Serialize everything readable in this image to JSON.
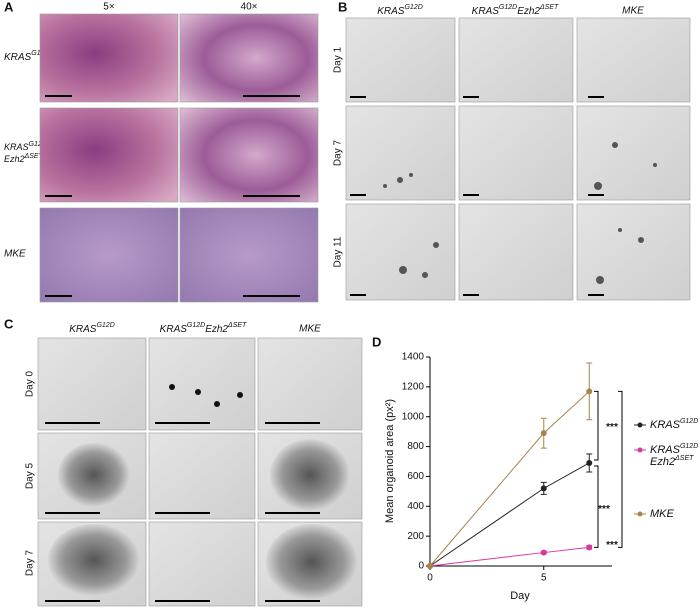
{
  "panel_a": {
    "label": "A",
    "columns": [
      "5×",
      "40×"
    ],
    "rows": [
      {
        "gene": "KRAS",
        "sup": "G12D"
      },
      {
        "gene": "KRAS",
        "sup": "G12D",
        "gene2": "Ezh2",
        "sup2": "ΔSET"
      },
      {
        "gene": "MKE"
      }
    ]
  },
  "panel_b": {
    "label": "B",
    "columns": [
      {
        "gene": "KRAS",
        "sup": "G12D"
      },
      {
        "gene": "KRAS",
        "sup": "G12D",
        "gene2": "Ezh2",
        "sup2": "ΔSET"
      },
      {
        "gene": "MKE"
      }
    ],
    "rows": [
      "Day 1",
      "Day 7",
      "Day 11"
    ]
  },
  "panel_c": {
    "label": "C",
    "columns": [
      {
        "gene": "KRAS",
        "sup": "G12D"
      },
      {
        "gene": "KRAS",
        "sup": "G12D",
        "gene2": "Ezh2",
        "sup2": "ΔSET"
      },
      {
        "gene": "MKE"
      }
    ],
    "rows": [
      "Day 0",
      "Day 5",
      "Day 7"
    ]
  },
  "chart_data": {
    "label": "D",
    "type": "line",
    "xlabel": "Day",
    "ylabel": "Mean organoid area (px²)",
    "x": [
      0,
      5,
      7
    ],
    "xlim": [
      0,
      8
    ],
    "xticks": [
      0,
      5
    ],
    "ylim": [
      0,
      1400
    ],
    "yticks": [
      0,
      200,
      400,
      600,
      800,
      1000,
      1200,
      1400
    ],
    "series": [
      {
        "name": "KRAS",
        "name_sup": "G12D",
        "color": "#222222",
        "values": [
          0,
          520,
          690
        ],
        "errors": [
          0,
          40,
          60
        ]
      },
      {
        "name": "KRAS",
        "name_sup": "G12D",
        "name2": "Ezh2",
        "name2_sup": "ΔSET",
        "color": "#d6399a",
        "values": [
          0,
          90,
          125
        ],
        "errors": [
          0,
          10,
          12
        ]
      },
      {
        "name": "MKE",
        "color": "#a8844a",
        "values": [
          0,
          890,
          1170
        ],
        "errors": [
          0,
          100,
          190
        ]
      }
    ],
    "annotations": [
      "***",
      "***",
      "***"
    ]
  }
}
